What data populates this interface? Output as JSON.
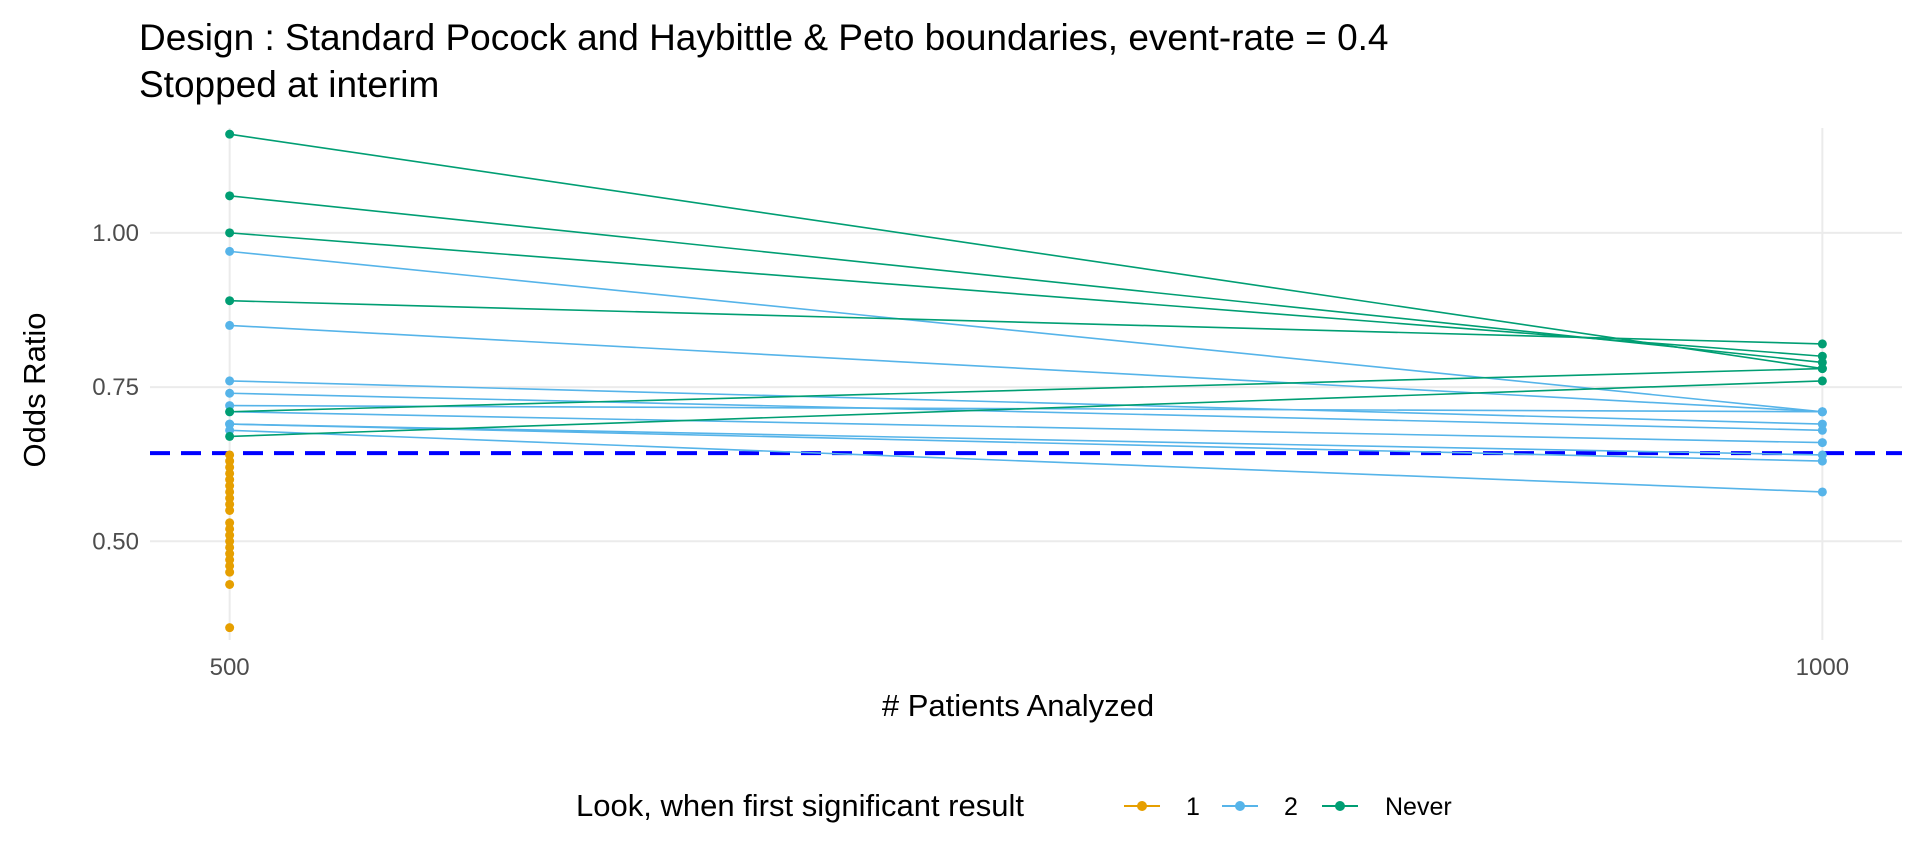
{
  "chart_data": {
    "type": "line",
    "title": "Design : Standard Pocock and Haybittle & Peto boundaries, event-rate = 0.4",
    "subtitle": "Stopped at interim",
    "xlabel": "# Patients Analyzed",
    "ylabel": "Odds Ratio",
    "x_ticks": [
      500,
      1000
    ],
    "y_ticks": [
      0.5,
      0.75,
      1.0
    ],
    "y_tick_labels": [
      "0.50",
      "0.75",
      "1.00"
    ],
    "x_tick_labels": [
      "500",
      "1000"
    ],
    "xlim": [
      475,
      1025
    ],
    "ylim": [
      0.34,
      1.17
    ],
    "grid": true,
    "reference_line": {
      "y": 0.643,
      "style": "dashed",
      "color": "#0000ff"
    },
    "legend": {
      "title": "Look, when first significant result",
      "position": "bottom",
      "entries": [
        {
          "label": "1",
          "color": "#E69F00"
        },
        {
          "label": "2",
          "color": "#56B4E9"
        },
        {
          "label": "Never",
          "color": "#009E73"
        }
      ]
    },
    "series": [
      {
        "name": "1",
        "color": "#E69F00",
        "points_at_500": [
          0.64,
          0.63,
          0.62,
          0.61,
          0.6,
          0.59,
          0.58,
          0.57,
          0.56,
          0.55,
          0.53,
          0.52,
          0.51,
          0.5,
          0.49,
          0.48,
          0.47,
          0.46,
          0.45,
          0.43,
          0.36
        ]
      },
      {
        "name": "2",
        "color": "#56B4E9",
        "lines": [
          [
            0.97,
            0.71
          ],
          [
            0.85,
            0.71
          ],
          [
            0.76,
            0.69
          ],
          [
            0.74,
            0.68
          ],
          [
            0.72,
            0.71
          ],
          [
            0.71,
            0.66
          ],
          [
            0.69,
            0.64
          ],
          [
            0.69,
            0.63
          ],
          [
            0.68,
            0.58
          ]
        ]
      },
      {
        "name": "Never",
        "color": "#009E73",
        "lines": [
          [
            1.16,
            0.78
          ],
          [
            1.06,
            0.79
          ],
          [
            1.0,
            0.8
          ],
          [
            0.89,
            0.82
          ],
          [
            0.71,
            0.78
          ],
          [
            0.67,
            0.76
          ]
        ]
      }
    ]
  }
}
